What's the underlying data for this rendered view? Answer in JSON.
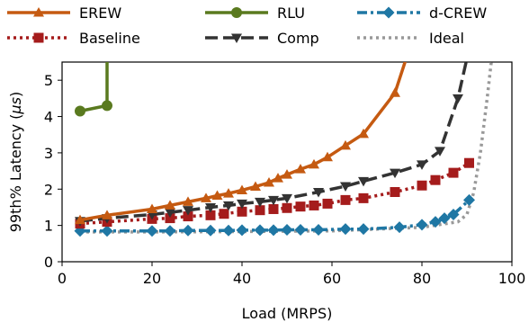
{
  "chart_data": {
    "type": "line",
    "xlabel": "Load (MRPS)",
    "ylabel_prefix": "99th% Latency (",
    "ylabel_unit": "μs",
    "ylabel_suffix": ")",
    "xlim": [
      0,
      100
    ],
    "ylim": [
      0,
      5.5
    ],
    "xticks": [
      0,
      20,
      40,
      60,
      80,
      100
    ],
    "yticks": [
      0,
      1,
      2,
      3,
      4,
      5
    ],
    "grid": false,
    "legend_placement": "top, outside plot, 3 columns",
    "series": [
      {
        "name": "EREW",
        "color": "#c55a11",
        "marker": "triangle-up",
        "line_style": "solid",
        "x": [
          4,
          10,
          20,
          24,
          28,
          32,
          34.5,
          37,
          40,
          43,
          46,
          48,
          50,
          53,
          56,
          59,
          63,
          67,
          74,
          76.5
        ],
        "y": [
          1.15,
          1.28,
          1.45,
          1.55,
          1.65,
          1.75,
          1.82,
          1.88,
          1.97,
          2.07,
          2.18,
          2.3,
          2.4,
          2.55,
          2.68,
          2.88,
          3.2,
          3.52,
          4.65,
          5.6
        ]
      },
      {
        "name": "RLU",
        "color": "#5a7a1f",
        "marker": "circle",
        "line_style": "solid",
        "x": [
          4,
          10,
          10
        ],
        "y": [
          4.15,
          4.3,
          5.6
        ]
      },
      {
        "name": "d-CREW",
        "color": "#1f77a4",
        "marker": "diamond",
        "line_style": "dash-dot",
        "x": [
          4,
          10,
          20,
          24,
          28,
          33,
          37,
          40,
          44,
          47,
          50,
          53,
          57,
          63,
          67,
          75,
          80,
          83,
          85,
          87,
          90.5
        ],
        "y": [
          0.85,
          0.85,
          0.85,
          0.85,
          0.86,
          0.86,
          0.86,
          0.87,
          0.87,
          0.87,
          0.88,
          0.88,
          0.88,
          0.9,
          0.9,
          0.95,
          1.02,
          1.1,
          1.2,
          1.3,
          1.7
        ]
      },
      {
        "name": "Baseline",
        "color": "#a51c1c",
        "marker": "square",
        "line_style": "dotted",
        "x": [
          4,
          10,
          20,
          24,
          28,
          33,
          36,
          40,
          44,
          47,
          50,
          53,
          56,
          59,
          63,
          67,
          74,
          80,
          83,
          87,
          90.5
        ],
        "y": [
          1.05,
          1.1,
          1.18,
          1.2,
          1.25,
          1.28,
          1.32,
          1.38,
          1.42,
          1.45,
          1.48,
          1.52,
          1.55,
          1.6,
          1.7,
          1.75,
          1.92,
          2.1,
          2.25,
          2.45,
          2.72
        ]
      },
      {
        "name": "Comp",
        "color": "#333333",
        "marker": "triangle-down",
        "line_style": "dashed",
        "x": [
          4,
          10,
          20,
          24,
          28,
          33,
          37,
          40,
          44,
          47,
          50,
          57,
          63,
          67,
          74,
          80,
          84,
          88,
          90
        ],
        "y": [
          1.12,
          1.2,
          1.3,
          1.36,
          1.42,
          1.5,
          1.55,
          1.6,
          1.65,
          1.7,
          1.75,
          1.92,
          2.08,
          2.22,
          2.45,
          2.68,
          3.05,
          4.5,
          5.6
        ]
      },
      {
        "name": "Ideal",
        "color": "#999999",
        "marker": "none",
        "line_style": "dotted",
        "x": [
          4,
          20,
          40,
          60,
          80,
          88,
          90,
          91.5,
          93,
          94.5,
          95.5
        ],
        "y": [
          0.82,
          0.82,
          0.83,
          0.85,
          0.95,
          1.1,
          1.3,
          1.9,
          3.0,
          4.5,
          5.6
        ]
      }
    ],
    "legend_order": [
      "EREW",
      "RLU",
      "d-CREW",
      "Baseline",
      "Comp",
      "Ideal"
    ]
  }
}
